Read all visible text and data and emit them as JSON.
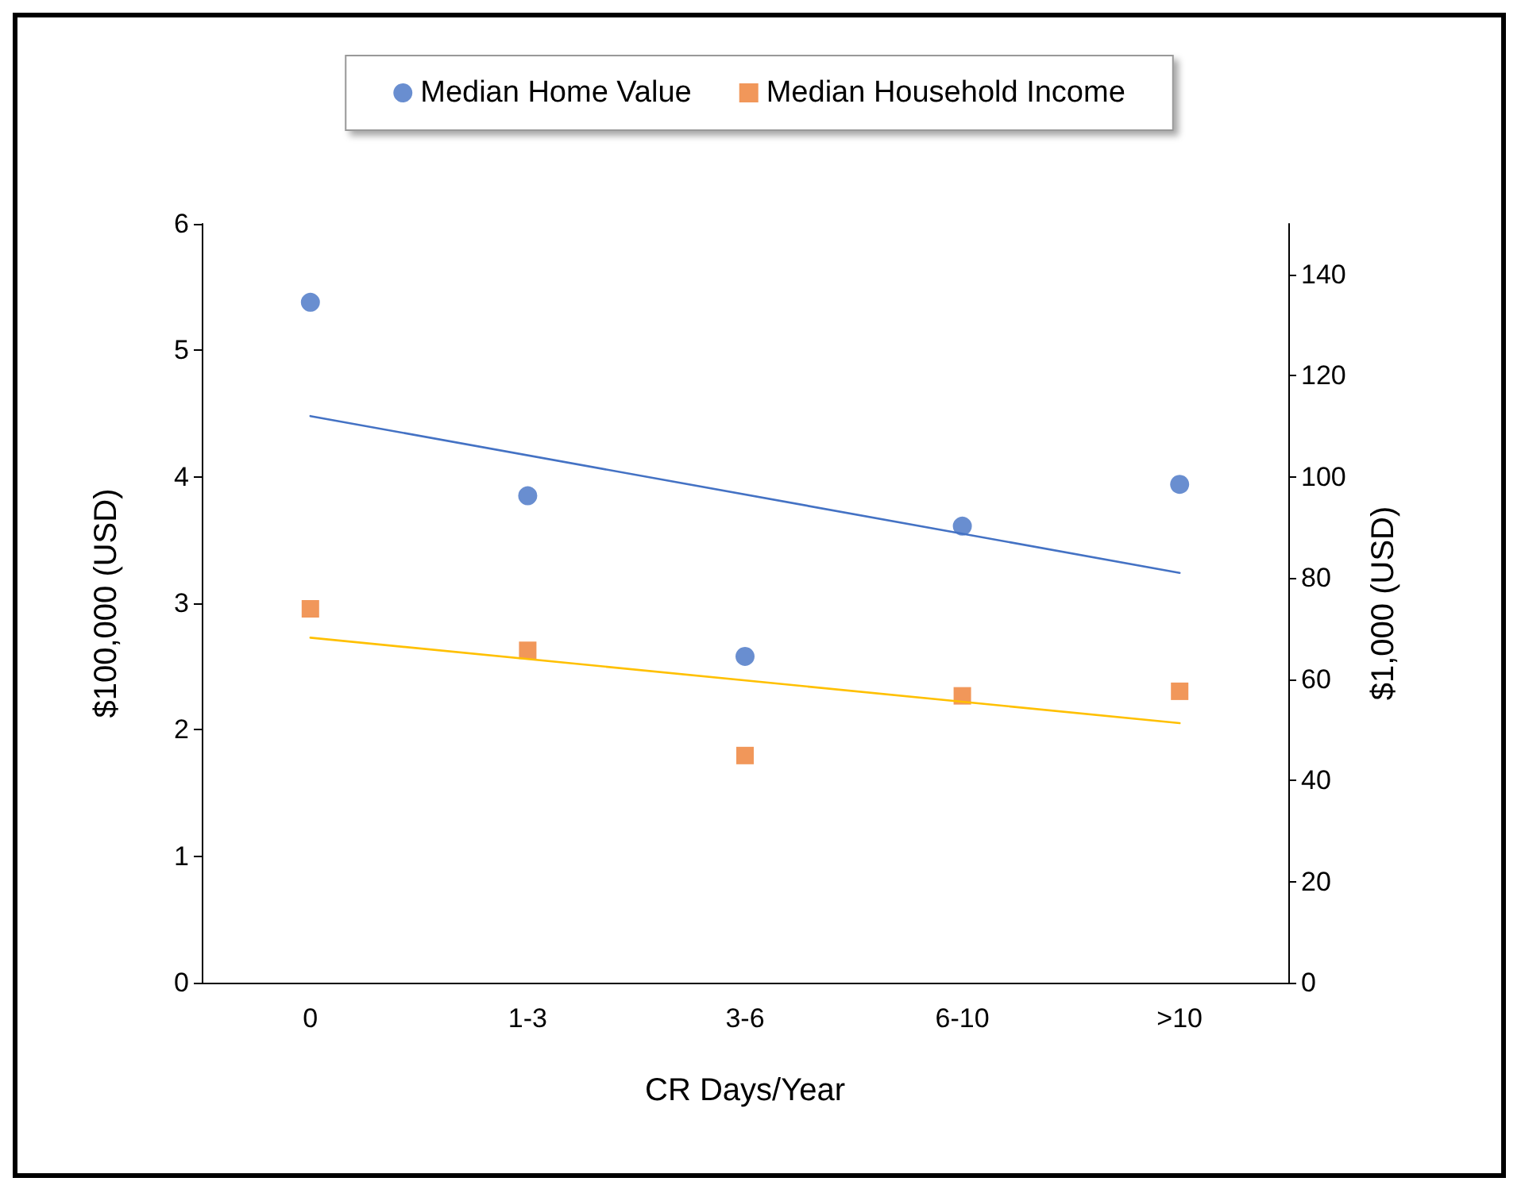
{
  "chart_data": {
    "type": "scatter",
    "categories": [
      "0",
      "1-3",
      "3-6",
      "6-10",
      ">10"
    ],
    "xlabel": "CR Days/Year",
    "ylabel": "$100,000 (USD)",
    "y2label": "$1,000 (USD)",
    "ylim": [
      0,
      6
    ],
    "yticks": [
      0,
      1,
      2,
      3,
      4,
      5,
      6
    ],
    "y2lim": [
      0,
      150
    ],
    "y2ticks": [
      0,
      20,
      40,
      60,
      80,
      100,
      120,
      140
    ],
    "grid": false,
    "legend": "top",
    "series": [
      {
        "name": "Median Home Value",
        "color": "#4472c4",
        "marker": "circle",
        "values": [
          5.38,
          3.85,
          2.58,
          3.61,
          3.94
        ]
      },
      {
        "name": "Median Household Income",
        "color": "#ed7d31",
        "marker": "square",
        "axis": "y2",
        "values": [
          73.9,
          65.7,
          44.9,
          56.7,
          57.6
        ]
      },
      {
        "type": "line",
        "color": "#4472c4",
        "marker": "none",
        "line_style": "solid",
        "x": [
          "0",
          ">10"
        ],
        "values": [
          4.48,
          3.24
        ]
      },
      {
        "type": "line",
        "color": "#ffc000",
        "marker": "none",
        "line_style": "solid",
        "axis": "y2",
        "x": [
          "0",
          ">10"
        ],
        "values": [
          68.2,
          51.3
        ]
      }
    ]
  }
}
